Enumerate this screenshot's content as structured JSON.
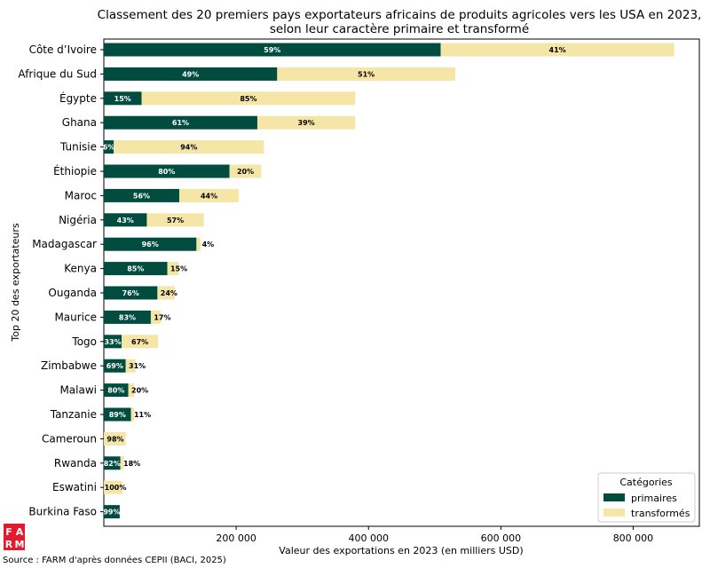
{
  "colors": {
    "primary": "#004d40",
    "processed": "#f5e6a8",
    "logo": "#e31b2d"
  },
  "logo": {
    "text": "FARM"
  },
  "source": "Source :  FARM d'après données CEPII (BACI, 2025)",
  "chart_data": {
    "type": "bar",
    "orientation": "horizontal",
    "stacked": true,
    "title_lines": [
      "Classement des 20 premiers pays exportateurs africains de produits agricoles vers les USA en 2023,",
      "selon leur caractère primaire et transformé"
    ],
    "xlabel": "Valeur des exportations en 2023 (en milliers USD)",
    "ylabel": "Top 20 des exportateurs",
    "xlim": [
      0,
      900000
    ],
    "xticks": [
      200000,
      400000,
      600000,
      800000
    ],
    "xtick_labels": [
      "200 000",
      "400 000",
      "600 000",
      "800 000"
    ],
    "grid": false,
    "legend": {
      "title": "Catégories",
      "position": "bottom-right"
    },
    "categories": [
      "Côte d’Ivoire",
      "Afrique du Sud",
      "Égypte",
      "Ghana",
      "Tunisie",
      "Éthiopie",
      "Maroc",
      "Nigéria",
      "Madagascar",
      "Kenya",
      "Ouganda",
      "Maurice",
      "Togo",
      "Zimbabwe",
      "Malawi",
      "Tanzanie",
      "Cameroun",
      "Rwanda",
      "Eswatini",
      "Burkina Faso"
    ],
    "series": [
      {
        "name": "primaires",
        "values": [
          509000,
          262000,
          57000,
          232000,
          15000,
          190000,
          114000,
          65000,
          140000,
          96000,
          81000,
          71000,
          27000,
          33000,
          37000,
          41000,
          0,
          25000,
          0,
          24000
        ],
        "labels": [
          "59%",
          "49%",
          "15%",
          "61%",
          "6%",
          "80%",
          "56%",
          "43%",
          "96%",
          "85%",
          "76%",
          "83%",
          "33%",
          "69%",
          "80%",
          "89%",
          "",
          "82%",
          "",
          "99%"
        ]
      },
      {
        "name": "transformés",
        "values": [
          353000,
          269000,
          323000,
          148000,
          227000,
          48000,
          90000,
          86000,
          6000,
          17000,
          26000,
          15000,
          55000,
          15000,
          9000,
          5000,
          33000,
          5000,
          28000,
          0
        ],
        "labels": [
          "41%",
          "51%",
          "85%",
          "39%",
          "94%",
          "20%",
          "44%",
          "57%",
          "4%",
          "15%",
          "24%",
          "17%",
          "67%",
          "31%",
          "20%",
          "11%",
          "98%",
          "18%",
          "100%",
          ""
        ]
      }
    ]
  }
}
